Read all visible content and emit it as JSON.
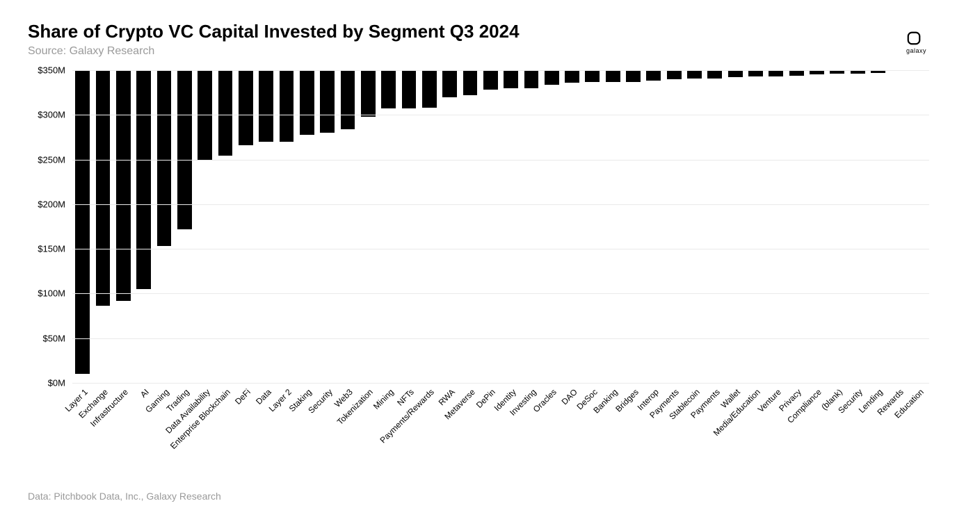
{
  "title": "Share of Crypto VC Capital Invested by Segment Q3 2024",
  "subtitle": "Source: Galaxy Research",
  "footer": "Data: Pitchbook Data, Inc., Galaxy Research",
  "logo": {
    "label": "galaxy"
  },
  "chart": {
    "type": "bar",
    "bar_color": "#000000",
    "background_color": "#ffffff",
    "grid_color": "#eaeaea",
    "title_fontsize": 26,
    "label_fontsize": 12,
    "yaxis_fontsize": 13,
    "bar_width": 0.82,
    "ylim": [
      0,
      350
    ],
    "ytick_step": 50,
    "yticks": [
      {
        "value": 0,
        "label": "$0M"
      },
      {
        "value": 50,
        "label": "$50M"
      },
      {
        "value": 100,
        "label": "$100M"
      },
      {
        "value": 150,
        "label": "$150M"
      },
      {
        "value": 200,
        "label": "$200M"
      },
      {
        "value": 250,
        "label": "$250M"
      },
      {
        "value": 300,
        "label": "$300M"
      },
      {
        "value": 350,
        "label": "$350M"
      }
    ],
    "x_label_rotation_deg": -45,
    "categories": [
      "Layer 1",
      "Exchange",
      "Infrastructure",
      "AI",
      "Gaming",
      "Trading",
      "Data Availability",
      "Enterprise Blockchain",
      "DeFi",
      "Data",
      "Layer 2",
      "Staking",
      "Security",
      "Web3",
      "Tokenization",
      "Mining",
      "NFTs",
      "Payments/Rewards",
      "RWA",
      "Metaverse",
      "DePin",
      "Identity",
      "Investing",
      "Oracles",
      "DAO",
      "DeSoc",
      "Banking",
      "Bridges",
      "Interop",
      "Payments",
      "Stablecoin",
      "Payments",
      "Wallet",
      "Media/Education",
      "Venture",
      "Privacy",
      "Compliance",
      "(blank)",
      "Security",
      "Lending",
      "Rewards",
      "Education"
    ],
    "values": [
      340,
      264,
      258,
      245,
      197,
      178,
      100,
      96,
      84,
      80,
      80,
      72,
      70,
      66,
      52,
      43,
      43,
      42,
      30,
      28,
      22,
      20,
      20,
      16,
      14,
      13,
      13,
      13,
      12,
      10,
      9,
      9,
      8,
      7,
      7,
      6,
      5,
      4,
      4,
      3,
      1,
      1
    ]
  }
}
